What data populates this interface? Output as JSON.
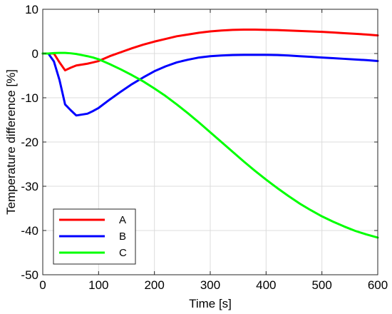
{
  "chart_data": {
    "type": "line",
    "xlabel": "Time [s]",
    "ylabel": "Temperature difference [%]",
    "xlim": [
      0,
      600
    ],
    "ylim": [
      -50,
      10
    ],
    "xticks": [
      0,
      100,
      200,
      300,
      400,
      500,
      600
    ],
    "yticks": [
      -50,
      -40,
      -30,
      -20,
      -10,
      0,
      10
    ],
    "grid": true,
    "legend_position": "bottom-left",
    "series": [
      {
        "name": "A",
        "color": "#ff0000",
        "x": [
          0,
          10,
          20,
          30,
          40,
          50,
          60,
          70,
          80,
          90,
          100,
          120,
          140,
          160,
          180,
          200,
          220,
          240,
          260,
          280,
          300,
          320,
          340,
          360,
          380,
          400,
          420,
          440,
          460,
          480,
          500,
          520,
          540,
          560,
          580,
          600
        ],
        "y": [
          0,
          0,
          0,
          -2,
          -3.8,
          -3.2,
          -2.7,
          -2.5,
          -2.3,
          -2.0,
          -1.7,
          -0.6,
          0.3,
          1.2,
          2.0,
          2.7,
          3.3,
          3.9,
          4.3,
          4.7,
          5.0,
          5.2,
          5.35,
          5.4,
          5.4,
          5.35,
          5.3,
          5.2,
          5.1,
          5.0,
          4.9,
          4.75,
          4.6,
          4.45,
          4.3,
          4.1
        ]
      },
      {
        "name": "B",
        "color": "#0000ff",
        "x": [
          0,
          10,
          20,
          30,
          40,
          50,
          60,
          70,
          80,
          90,
          100,
          120,
          140,
          160,
          180,
          200,
          220,
          240,
          260,
          280,
          300,
          320,
          340,
          360,
          380,
          400,
          420,
          440,
          460,
          480,
          500,
          520,
          540,
          560,
          580,
          600
        ],
        "y": [
          0,
          0,
          -1.8,
          -6,
          -11.5,
          -12.8,
          -14,
          -13.8,
          -13.6,
          -13.0,
          -12.3,
          -10.4,
          -8.6,
          -6.9,
          -5.4,
          -4.0,
          -2.9,
          -2.0,
          -1.4,
          -0.9,
          -0.6,
          -0.45,
          -0.35,
          -0.3,
          -0.3,
          -0.3,
          -0.35,
          -0.45,
          -0.6,
          -0.75,
          -0.9,
          -1.05,
          -1.2,
          -1.35,
          -1.5,
          -1.7
        ]
      },
      {
        "name": "C",
        "color": "#00ff00",
        "x": [
          0,
          10,
          20,
          30,
          40,
          50,
          60,
          70,
          80,
          90,
          100,
          120,
          140,
          160,
          180,
          200,
          220,
          240,
          260,
          280,
          300,
          320,
          340,
          360,
          380,
          400,
          420,
          440,
          460,
          480,
          500,
          520,
          540,
          560,
          580,
          600
        ],
        "y": [
          0,
          0,
          0.1,
          0.15,
          0.15,
          0.05,
          -0.1,
          -0.35,
          -0.6,
          -0.9,
          -1.3,
          -2.4,
          -3.6,
          -4.9,
          -6.3,
          -7.9,
          -9.6,
          -11.5,
          -13.5,
          -15.6,
          -17.8,
          -20.0,
          -22.2,
          -24.4,
          -26.5,
          -28.5,
          -30.4,
          -32.2,
          -33.9,
          -35.4,
          -36.8,
          -38.0,
          -39.1,
          -40.1,
          -40.9,
          -41.6
        ]
      }
    ]
  }
}
